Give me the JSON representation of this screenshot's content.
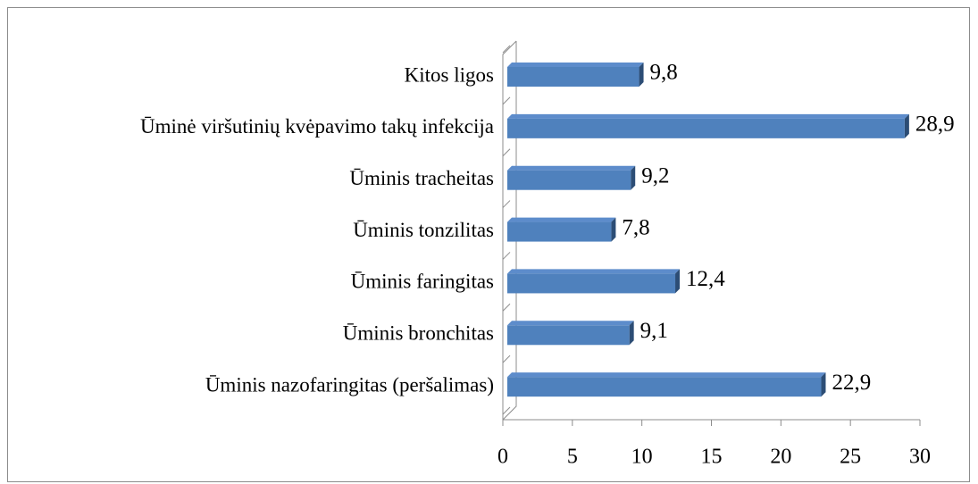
{
  "chart_data": {
    "type": "bar",
    "orientation": "horizontal",
    "categories": [
      "Kitos ligos",
      "Ūminė viršutinių kvėpavimo takų infekcija",
      "Ūminis tracheitas",
      "Ūminis tonzilitas",
      "Ūminis faringitas",
      "Ūminis bronchitas",
      "Ūminis nazofaringitas (peršalimas)"
    ],
    "values": [
      9.8,
      28.9,
      9.2,
      7.8,
      12.4,
      9.1,
      22.9
    ],
    "value_labels": [
      "9,8",
      "28,9",
      "9,2",
      "7,8",
      "12,4",
      "9,1",
      "22,9"
    ],
    "color": "#4f81bd",
    "xlim": [
      0,
      30
    ],
    "xticks": [
      0,
      5,
      10,
      15,
      20,
      25,
      30
    ]
  }
}
